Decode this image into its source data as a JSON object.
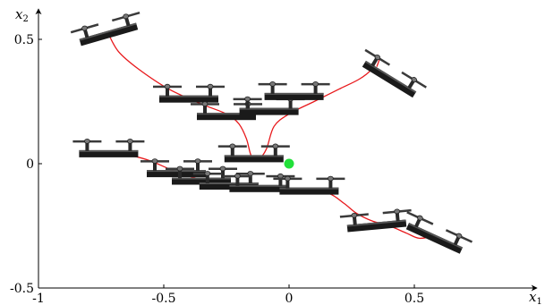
{
  "chart_data": {
    "type": "diagram",
    "title": "",
    "xlabel": "x",
    "xlabel_sub": "1",
    "ylabel": "x",
    "ylabel_sub": "2",
    "xlim": [
      -1,
      0.9
    ],
    "ylim": [
      -0.5,
      0.6
    ],
    "x_ticks": [
      {
        "value": -1,
        "label": "-1"
      },
      {
        "value": -0.5,
        "label": "-0.5"
      },
      {
        "value": 0,
        "label": "0"
      },
      {
        "value": 0.5,
        "label": "0.5"
      }
    ],
    "y_ticks": [
      {
        "value": 0.5,
        "label": "0.5"
      },
      {
        "value": 0,
        "label": "0"
      },
      {
        "value": -0.5,
        "label": "-0.5"
      }
    ],
    "trajectories": [
      {
        "color": "#e8191c",
        "points": [
          [
            -0.72,
            0.52
          ],
          [
            -0.68,
            0.45
          ],
          [
            -0.6,
            0.38
          ],
          [
            -0.48,
            0.3
          ],
          [
            -0.35,
            0.24
          ],
          [
            -0.25,
            0.2
          ],
          [
            -0.2,
            0.16
          ],
          [
            -0.17,
            0.1
          ],
          [
            -0.15,
            0.03
          ],
          [
            -0.12,
            0.02
          ],
          [
            -0.09,
            0.06
          ],
          [
            -0.06,
            0.15
          ],
          [
            0.0,
            0.2
          ],
          [
            0.1,
            0.25
          ],
          [
            0.2,
            0.3
          ],
          [
            0.28,
            0.34
          ],
          [
            0.33,
            0.38
          ],
          [
            0.35,
            0.42
          ],
          [
            0.36,
            0.42
          ],
          [
            0.35,
            0.39
          ]
        ]
      },
      {
        "color": "#e8191c",
        "points": [
          [
            -0.72,
            0.04
          ],
          [
            -0.62,
            0.03
          ],
          [
            -0.55,
            0.01
          ],
          [
            -0.48,
            -0.02
          ],
          [
            -0.4,
            -0.05
          ],
          [
            -0.32,
            -0.07
          ],
          [
            -0.24,
            -0.08
          ],
          [
            -0.16,
            -0.09
          ],
          [
            -0.08,
            -0.1
          ],
          [
            0.0,
            -0.1
          ],
          [
            0.08,
            -0.11
          ],
          [
            0.16,
            -0.12
          ],
          [
            0.22,
            -0.16
          ],
          [
            0.27,
            -0.2
          ],
          [
            0.33,
            -0.23
          ],
          [
            0.4,
            -0.25
          ],
          [
            0.47,
            -0.28
          ],
          [
            0.52,
            -0.3
          ],
          [
            0.58,
            -0.29
          ]
        ]
      }
    ],
    "drones": [
      {
        "x": -0.72,
        "y": 0.52,
        "angle": 0.28
      },
      {
        "x": -0.4,
        "y": 0.26,
        "angle": 0
      },
      {
        "x": -0.25,
        "y": 0.19,
        "angle": 0
      },
      {
        "x": -0.08,
        "y": 0.21,
        "angle": 0
      },
      {
        "x": 0.02,
        "y": 0.27,
        "angle": 0
      },
      {
        "x": 0.4,
        "y": 0.34,
        "angle": -0.55
      },
      {
        "x": -0.72,
        "y": 0.04,
        "angle": 0
      },
      {
        "x": -0.45,
        "y": -0.04,
        "angle": 0
      },
      {
        "x": -0.35,
        "y": -0.07,
        "angle": 0
      },
      {
        "x": -0.24,
        "y": -0.09,
        "angle": 0
      },
      {
        "x": -0.14,
        "y": 0.02,
        "angle": 0
      },
      {
        "x": -0.12,
        "y": -0.1,
        "angle": 0
      },
      {
        "x": 0.08,
        "y": -0.11,
        "angle": 0
      },
      {
        "x": 0.35,
        "y": -0.25,
        "angle": 0.09
      },
      {
        "x": 0.58,
        "y": -0.3,
        "angle": -0.43
      }
    ],
    "goal": {
      "x": 0.0,
      "y": 0.0,
      "color": "#22e03a"
    }
  }
}
